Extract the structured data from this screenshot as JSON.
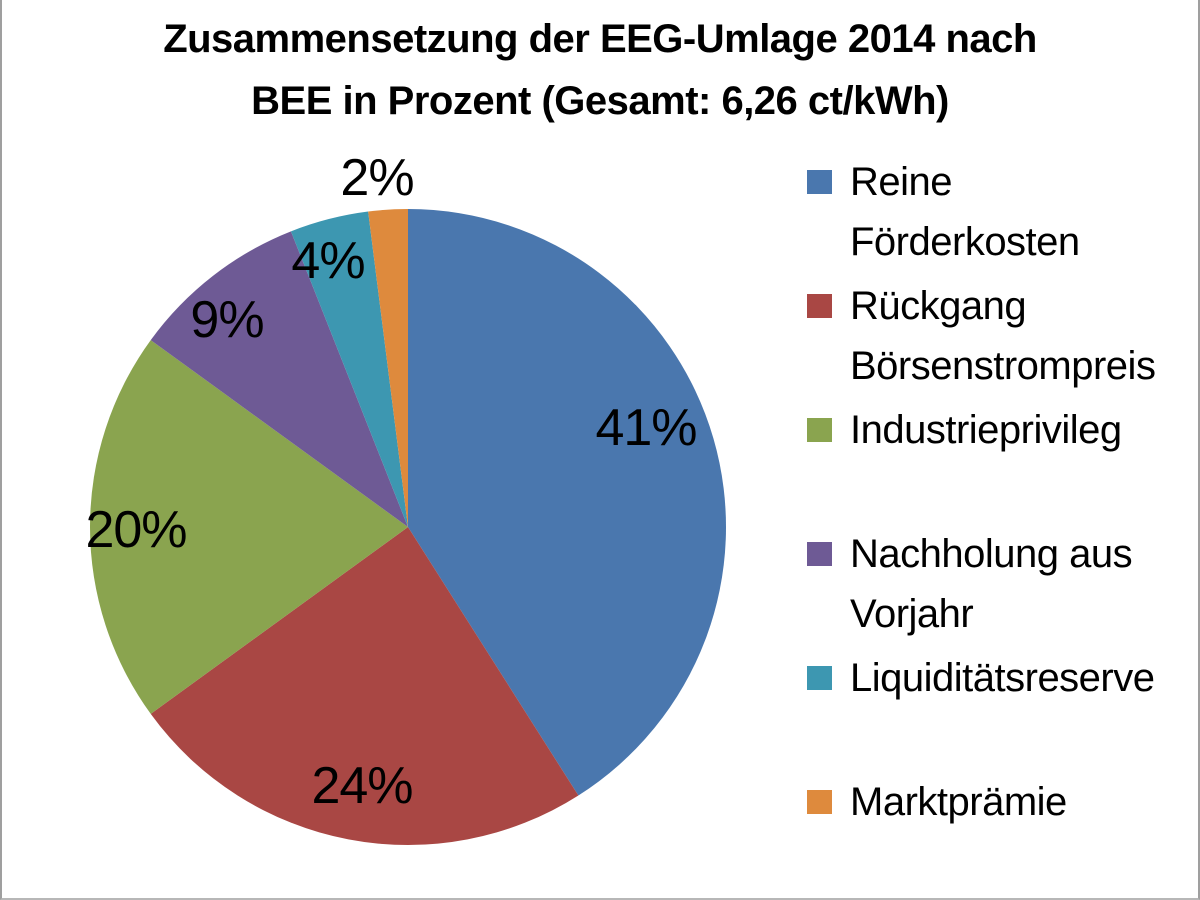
{
  "frame": {
    "background": "#ffffff",
    "border_color": "#9f9f9f"
  },
  "chart_data": {
    "type": "pie",
    "title": "Zusammensetzung der EEG-Umlage 2014 nach BEE in Prozent (Gesamt: 6,26 ct/kWh)",
    "title_lines": [
      "Zusammensetzung der EEG-Umlage 2014 nach",
      "BEE in Prozent (Gesamt: 6,26 ct/kWh)"
    ],
    "total": "6,26 ct/kWh",
    "unit": "percent",
    "start_angle_deg": 0,
    "direction": "clockwise",
    "legend_position": "right",
    "slices": [
      {
        "label": "Reine Förderkosten",
        "legend_lines": [
          "Reine",
          "Förderkosten"
        ],
        "value": 41,
        "percent_label": "41%",
        "color": "#4A77AE"
      },
      {
        "label": "Rückgang Börsenstrompreis",
        "legend_lines": [
          "Rückgang",
          "Börsenstrompreis"
        ],
        "value": 24,
        "percent_label": "24%",
        "color": "#A94744"
      },
      {
        "label": "Industrieprivileg",
        "legend_lines": [
          "Industrieprivileg"
        ],
        "value": 20,
        "percent_label": "20%",
        "color": "#8AA44F"
      },
      {
        "label": "Nachholung aus Vorjahr",
        "legend_lines": [
          "Nachholung aus",
          "Vorjahr"
        ],
        "value": 9,
        "percent_label": "9%",
        "color": "#6E5A95"
      },
      {
        "label": "Liquiditätsreserve",
        "legend_lines": [
          "Liquiditätsreserve"
        ],
        "value": 4,
        "percent_label": "4%",
        "color": "#3D97B1"
      },
      {
        "label": "Marktprämie",
        "legend_lines": [
          "Marktprämie"
        ],
        "value": 2,
        "percent_label": "2%",
        "color": "#DE8A3D"
      }
    ]
  }
}
